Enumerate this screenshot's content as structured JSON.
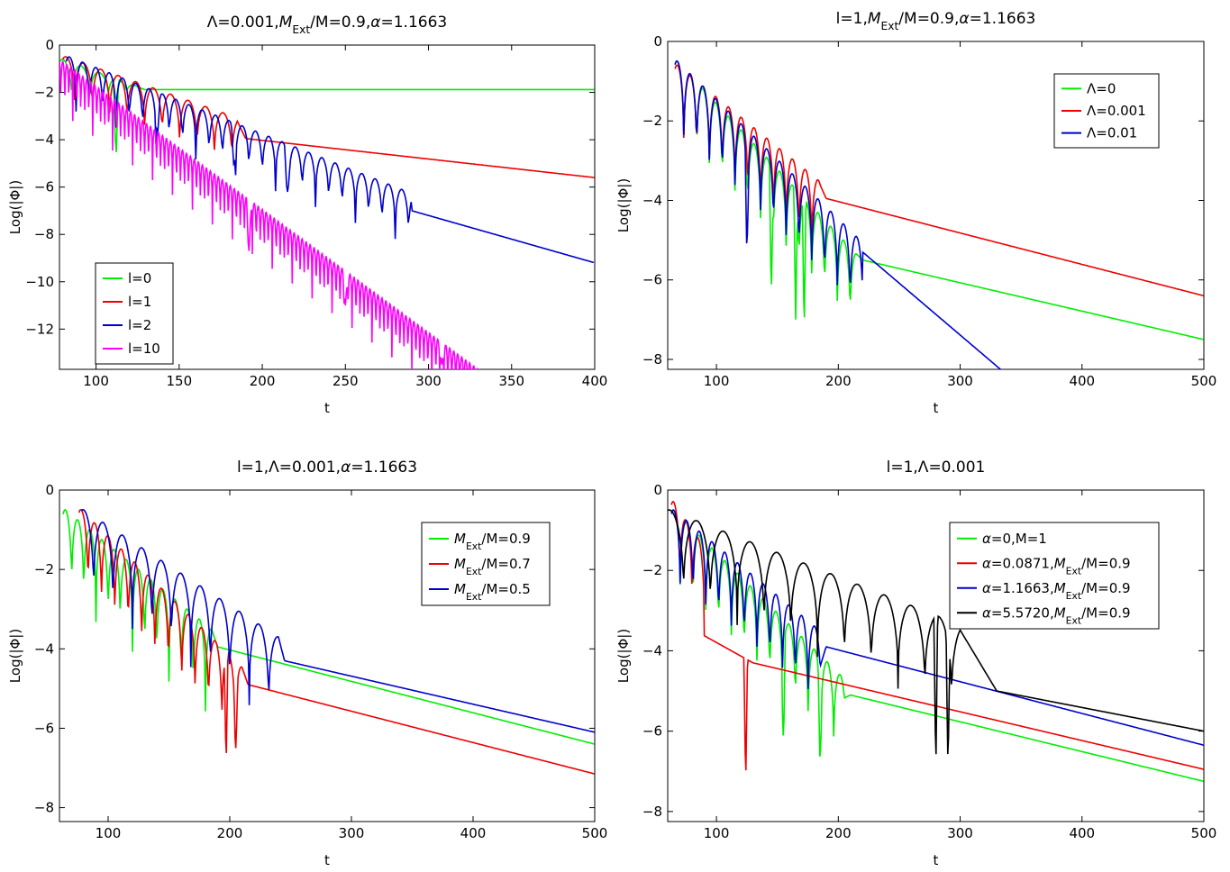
{
  "chart_data": [
    {
      "type": "line",
      "title": "Λ=0.001,M_Ext/M=0.9,α=1.1663",
      "xlabel": "t",
      "ylabel": "Log(|Φ|)",
      "xlim": [
        78,
        400
      ],
      "ylim": [
        -13.7,
        0
      ],
      "xticks": [
        100,
        150,
        200,
        250,
        300,
        350,
        400
      ],
      "yticks": [
        0,
        -2,
        -4,
        -6,
        -8,
        -10,
        -12
      ],
      "legend_position": "bottom-left",
      "series": [
        {
          "name": "l=0",
          "color": "#00ee00",
          "start": -0.6,
          "osc": 1.1,
          "period": 11,
          "phase": 80,
          "slope": 0,
          "plateau": -1.88,
          "ringdown_end": 130,
          "tail_start": 140,
          "tail_end": 400,
          "tail_y0": -1.88,
          "tail_y1": -1.88,
          "dips": [
            [
              112,
              -5.0
            ]
          ]
        },
        {
          "name": "l=1",
          "color": "#ee0000",
          "start": -0.5,
          "osc": 1.0,
          "period": 10.5,
          "phase": 82,
          "slope": -0.025,
          "ringdown_end": 185,
          "tail_start": 190,
          "tail_end": 400,
          "tail_y0": -3.95,
          "tail_y1": -5.6,
          "dips": []
        },
        {
          "name": "l=2",
          "color": "#0000cc",
          "start": -0.5,
          "osc": 1.0,
          "period": 8,
          "phase": 84,
          "slope": -0.028,
          "ringdown_end": 290,
          "tail_start": 290,
          "tail_end": 400,
          "tail_y0": -7.0,
          "tail_y1": -9.2,
          "dips": [
            [
              137,
              -3.8
            ],
            [
              183,
              -5.2
            ],
            [
              215,
              -6.4
            ]
          ]
        },
        {
          "name": "l=10",
          "color": "#ff00ff",
          "start": -0.7,
          "osc": 0.9,
          "period": 2.4,
          "phase": 80,
          "slope": -0.052,
          "ringdown_end": 400,
          "tail_start": 400,
          "tail_end": 400,
          "tail_y0": -14,
          "tail_y1": -14,
          "dips": [
            [
              192,
              -8.7
            ],
            [
              250,
              -11.0
            ],
            [
              308,
              -13.5
            ]
          ]
        }
      ]
    },
    {
      "type": "line",
      "title": "l=1,M_Ext/M=0.9,α=1.1663",
      "xlabel": "t",
      "ylabel": "Log(|Φ|)",
      "xlim": [
        60,
        500
      ],
      "ylim": [
        -8.25,
        0
      ],
      "xticks": [
        100,
        200,
        300,
        400,
        500
      ],
      "yticks": [
        0,
        -2,
        -4,
        -6,
        -8
      ],
      "legend_position": "top-right",
      "series": [
        {
          "name": "Λ=0",
          "color": "#00ee00",
          "start": -0.5,
          "osc": 1.0,
          "period": 10.5,
          "phase": 68,
          "slope": -0.033,
          "ringdown_end": 215,
          "tail_start": 220,
          "tail_end": 500,
          "tail_y0": -5.5,
          "tail_y1": -7.5,
          "dips": [
            [
              145,
              -6.5
            ],
            [
              165,
              -7.0
            ],
            [
              172,
              -7.4
            ]
          ]
        },
        {
          "name": "Λ=0.001",
          "color": "#ee0000",
          "start": -0.6,
          "osc": 1.0,
          "period": 10.5,
          "phase": 68,
          "slope": -0.025,
          "ringdown_end": 185,
          "tail_start": 190,
          "tail_end": 500,
          "tail_y0": -3.95,
          "tail_y1": -6.4,
          "dips": []
        },
        {
          "name": "Λ=0.01",
          "color": "#0000cc",
          "start": -0.5,
          "osc": 1.1,
          "period": 10.5,
          "phase": 68,
          "slope": -0.03,
          "ringdown_end": 220,
          "tail_start": 220,
          "tail_end": 335,
          "tail_y0": -5.3,
          "tail_y1": -8.3,
          "dips": [
            [
              125,
              -5.4
            ]
          ]
        }
      ]
    },
    {
      "type": "line",
      "title": "l=1,Λ=0.001,α=1.1663",
      "xlabel": "t",
      "ylabel": "Log(|Φ|)",
      "xlim": [
        60,
        500
      ],
      "ylim": [
        -8.35,
        0
      ],
      "xticks": [
        100,
        200,
        300,
        400,
        500
      ],
      "yticks": [
        0,
        -2,
        -4,
        -6,
        -8
      ],
      "legend_position": "top-right",
      "series": [
        {
          "name": "M_Ext/M=0.9",
          "color": "#00ee00",
          "start": -0.5,
          "osc": 1.0,
          "period": 10,
          "phase": 65,
          "slope": -0.025,
          "ringdown_end": 185,
          "tail_start": 190,
          "tail_end": 500,
          "tail_y0": -3.95,
          "tail_y1": -6.4,
          "dips": []
        },
        {
          "name": "M_Ext/M=0.7",
          "color": "#ee0000",
          "start": -0.5,
          "osc": 1.0,
          "period": 11,
          "phase": 78,
          "slope": -0.03,
          "ringdown_end": 210,
          "tail_start": 215,
          "tail_end": 500,
          "tail_y0": -4.9,
          "tail_y1": -7.15,
          "dips": [
            [
              197,
              -7.0
            ],
            [
              205,
              -6.5
            ]
          ]
        },
        {
          "name": "M_Ext/M=0.5",
          "color": "#0000cc",
          "start": -0.5,
          "osc": 1.2,
          "period": 16,
          "phase": 80,
          "slope": -0.02,
          "ringdown_end": 240,
          "tail_start": 245,
          "tail_end": 500,
          "tail_y0": -4.3,
          "tail_y1": -6.1,
          "dips": []
        }
      ]
    },
    {
      "type": "line",
      "title": "l=1,Λ=0.001",
      "xlabel": "t",
      "ylabel": "Log(|Φ|)",
      "xlim": [
        60,
        500
      ],
      "ylim": [
        -8.25,
        0
      ],
      "xticks": [
        100,
        200,
        300,
        400,
        500
      ],
      "yticks": [
        0,
        -2,
        -4,
        -6,
        -8
      ],
      "legend_position": "top-right",
      "series": [
        {
          "name": "α=0,M=1",
          "color": "#00ee00",
          "start": -0.5,
          "osc": 1.1,
          "period": 10.5,
          "phase": 65,
          "slope": -0.03,
          "ringdown_end": 205,
          "tail_start": 210,
          "tail_end": 500,
          "tail_y0": -5.1,
          "tail_y1": -7.25,
          "dips": [
            [
              155,
              -6.4
            ],
            [
              185,
              -6.9
            ]
          ]
        },
        {
          "name": "α=0.0871,M_Ext/M=0.9",
          "color": "#ee0000",
          "start": -0.3,
          "osc": 1.0,
          "period": 10,
          "phase": 65,
          "slope": -0.045,
          "ringdown_end": 90,
          "tail_start": 130,
          "tail_end": 500,
          "tail_y0": -4.3,
          "tail_y1": -6.95,
          "dips": [
            [
              124,
              -7.4
            ]
          ]
        },
        {
          "name": "α=1.1663,M_Ext/M=0.9",
          "color": "#0000cc",
          "start": -0.5,
          "osc": 1.0,
          "period": 10.5,
          "phase": 65,
          "slope": -0.025,
          "ringdown_end": 185,
          "tail_start": 190,
          "tail_end": 500,
          "tail_y0": -3.9,
          "tail_y1": -6.35,
          "dips": []
        },
        {
          "name": "α=5.5720,M_Ext/M=0.9",
          "color": "#000000",
          "start": -0.5,
          "osc": 1.2,
          "period": 22,
          "phase": 62,
          "slope": -0.012,
          "ringdown_end": 300,
          "tail_start": 330,
          "tail_end": 500,
          "tail_y0": -5.0,
          "tail_y1": -6.0,
          "dips": [
            [
              280,
              -7.1
            ],
            [
              290,
              -7.0
            ]
          ]
        }
      ]
    }
  ]
}
